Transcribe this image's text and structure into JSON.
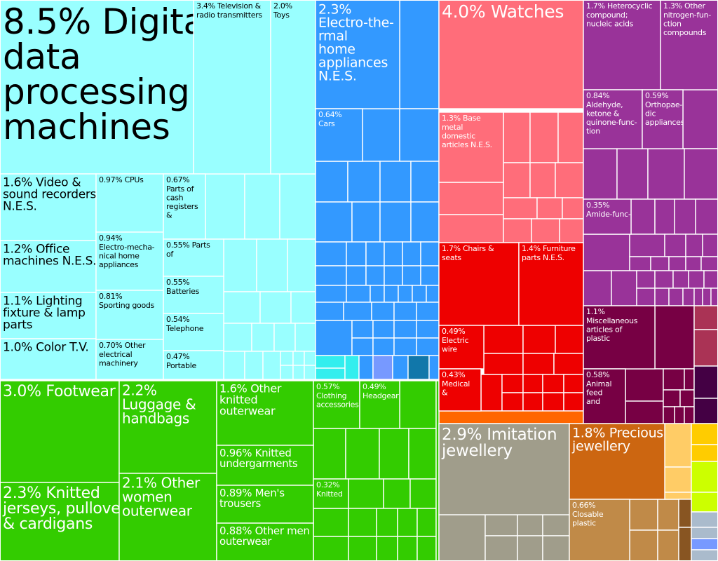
{
  "chart_data": {
    "type": "treemap",
    "unit": "% of exports",
    "palette": {
      "light-cyan": "#99ffff",
      "blue": "#3399ff",
      "salmon": "#ff6d7a",
      "purple": "#993399",
      "red": "#ee0000",
      "maroon": "#770044",
      "green": "#33cc00",
      "gray": "#a09d8b",
      "orange-brown": "#cc6611",
      "tan": "#c08a48",
      "orange": "#ff6600",
      "light-orange": "#ffcc66",
      "yellow": "#ffcc00",
      "lime": "#ccff00",
      "bright-cyan": "#33eeee",
      "periwinkle": "#7799ff",
      "teal": "#1177aa",
      "dark-purple": "#440044",
      "rose": "#aa3355",
      "silver": "#aabbcc",
      "brown": "#885522"
    },
    "items": [
      {
        "label": "8.5% Digital data processing machines",
        "value": 8.5,
        "color": "light-cyan"
      },
      {
        "label": "3.4% Television & radio transmitters",
        "value": 3.4,
        "color": "light-cyan"
      },
      {
        "label": "2.0% Toys",
        "value": 2.0,
        "color": "light-cyan"
      },
      {
        "label": "1.6% Video & sound recorders N.E.S.",
        "value": 1.6,
        "color": "light-cyan"
      },
      {
        "label": "1.2% Office machines N.E.S.",
        "value": 1.2,
        "color": "light-cyan"
      },
      {
        "label": "1.1% Lighting fixture & lamp parts",
        "value": 1.1,
        "color": "light-cyan"
      },
      {
        "label": "1.0% Color T.V.",
        "value": 1.0,
        "color": "light-cyan"
      },
      {
        "label": "0.97% CPUs",
        "value": 0.97,
        "color": "light-cyan"
      },
      {
        "label": "0.94% Electro-mechanical home appliances",
        "value": 0.94,
        "color": "light-cyan"
      },
      {
        "label": "0.81% Sporting goods",
        "value": 0.81,
        "color": "light-cyan"
      },
      {
        "label": "0.70% Other electrical machinery",
        "value": 0.7,
        "color": "light-cyan"
      },
      {
        "label": "0.67% Parts of cash registers &",
        "value": 0.67,
        "color": "light-cyan"
      },
      {
        "label": "0.55% Parts of",
        "value": 0.55,
        "color": "light-cyan"
      },
      {
        "label": "0.55% Batteries",
        "value": 0.55,
        "color": "light-cyan"
      },
      {
        "label": "0.54% Telephone",
        "value": 0.54,
        "color": "light-cyan"
      },
      {
        "label": "0.47% Portable",
        "value": 0.47,
        "color": "light-cyan"
      },
      {
        "label": "2.3% Electro-thermal home appliances N.E.S.",
        "value": 2.3,
        "color": "blue"
      },
      {
        "label": "0.64% Cars",
        "value": 0.64,
        "color": "blue"
      },
      {
        "label": "4.0% Watches",
        "value": 4.0,
        "color": "salmon"
      },
      {
        "label": "1.3% Base metal domestic articles N.E.S.",
        "value": 1.3,
        "color": "salmon"
      },
      {
        "label": "1.7% Heterocyclic compound; nucleic acids",
        "value": 1.7,
        "color": "purple"
      },
      {
        "label": "1.3% Other nitrogen-function compounds",
        "value": 1.3,
        "color": "purple"
      },
      {
        "label": "0.84% Aldehyde, ketone & quinone-function",
        "value": 0.84,
        "color": "purple"
      },
      {
        "label": "0.59% Orthopaedic appliances",
        "value": 0.59,
        "color": "purple"
      },
      {
        "label": "0.35% Amide-func-",
        "value": 0.35,
        "color": "purple"
      },
      {
        "label": "1.7% Chairs & seats",
        "value": 1.7,
        "color": "red"
      },
      {
        "label": "1.4% Furniture parts N.E.S.",
        "value": 1.4,
        "color": "red"
      },
      {
        "label": "0.49% Electric wire",
        "value": 0.49,
        "color": "red"
      },
      {
        "label": "0.43% Medical &",
        "value": 0.43,
        "color": "red"
      },
      {
        "label": "1.1% Miscellaneous articles of plastic",
        "value": 1.1,
        "color": "maroon"
      },
      {
        "label": "0.58% Animal feed and",
        "value": 0.58,
        "color": "maroon"
      },
      {
        "label": "3.0% Footwear",
        "value": 3.0,
        "color": "green"
      },
      {
        "label": "2.3% Knitted jerseys, pullovers & cardigans",
        "value": 2.3,
        "color": "green"
      },
      {
        "label": "2.2% Luggage & handbags",
        "value": 2.2,
        "color": "green"
      },
      {
        "label": "2.1% Other women outerwear",
        "value": 2.1,
        "color": "green"
      },
      {
        "label": "1.6% Other knitted outerwear",
        "value": 1.6,
        "color": "green"
      },
      {
        "label": "0.96% Knitted undergarments",
        "value": 0.96,
        "color": "green"
      },
      {
        "label": "0.89% Men's trousers",
        "value": 0.89,
        "color": "green"
      },
      {
        "label": "0.88% Other men outerwear",
        "value": 0.88,
        "color": "green"
      },
      {
        "label": "0.57% Clothing accessories",
        "value": 0.57,
        "color": "green"
      },
      {
        "label": "0.49% Headgear",
        "value": 0.49,
        "color": "green"
      },
      {
        "label": "0.32% Knitted",
        "value": 0.32,
        "color": "green"
      },
      {
        "label": "2.9% Imitation jewellery",
        "value": 2.9,
        "color": "gray"
      },
      {
        "label": "1.8% Precious jewellery",
        "value": 1.8,
        "color": "orange-brown"
      },
      {
        "label": "0.66% Closable plastic",
        "value": 0.66,
        "color": "tan"
      }
    ]
  }
}
